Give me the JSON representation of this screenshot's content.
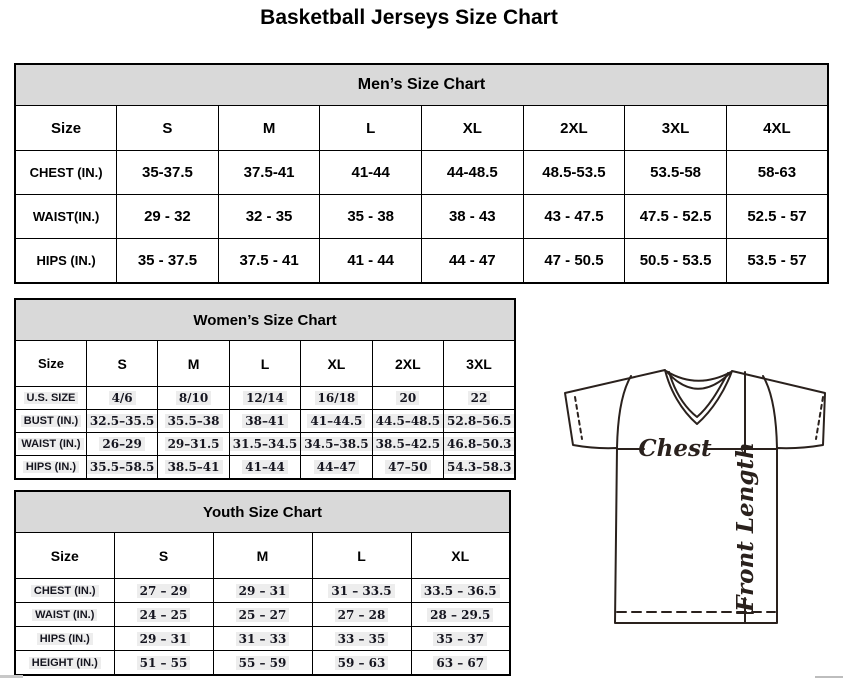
{
  "page": {
    "title": "Basketball Jerseys Size Chart"
  },
  "tables": {
    "men": {
      "title": "Men’s Size Chart",
      "size_label": "Size",
      "columns": [
        "S",
        "M",
        "L",
        "XL",
        "2XL",
        "3XL",
        "4XL"
      ],
      "rows": [
        {
          "label": "CHEST (IN.)",
          "values": [
            "35-37.5",
            "37.5-41",
            "41-44",
            "44-48.5",
            "48.5-53.5",
            "53.5-58",
            "58-63"
          ]
        },
        {
          "label": "WAIST(IN.)",
          "values": [
            "29 - 32",
            "32 - 35",
            "35 - 38",
            "38 - 43",
            "43 - 47.5",
            "47.5 - 52.5",
            "52.5 - 57"
          ]
        },
        {
          "label": "HIPS (IN.)",
          "values": [
            "35 - 37.5",
            "37.5 - 41",
            "41 - 44",
            "44 - 47",
            "47 - 50.5",
            "50.5 - 53.5",
            "53.5 - 57"
          ]
        }
      ]
    },
    "women": {
      "title": "Women’s Size Chart",
      "size_label": "Size",
      "columns": [
        "S",
        "M",
        "L",
        "XL",
        "2XL",
        "3XL"
      ],
      "rows": [
        {
          "label": "U.S. SIZE",
          "values": [
            "4/6",
            "8/10",
            "12/14",
            "16/18",
            "20",
            "22"
          ]
        },
        {
          "label": "BUST (IN.)",
          "values": [
            "32.5–35.5",
            "35.5–38",
            "38–41",
            "41–44.5",
            "44.5–48.5",
            "52.8–56.5"
          ]
        },
        {
          "label": "WAIST (IN.)",
          "values": [
            "26–29",
            "29–31.5",
            "31.5–34.5",
            "34.5–38.5",
            "38.5–42.5",
            "46.8–50.3"
          ]
        },
        {
          "label": "HIPS (IN.)",
          "values": [
            "35.5–58.5",
            "38.5–41",
            "41–44",
            "44–47",
            "47–50",
            "54.3–58.3"
          ]
        }
      ]
    },
    "youth": {
      "title": "Youth Size Chart",
      "size_label": "Size",
      "columns": [
        "S",
        "M",
        "L",
        "XL"
      ],
      "rows": [
        {
          "label": "CHEST (IN.)",
          "values": [
            "27 – 29",
            "29 – 31",
            "31 – 33.5",
            "33.5 – 36.5"
          ]
        },
        {
          "label": "WAIST (IN.)",
          "values": [
            "24 – 25",
            "25 – 27",
            "27 – 28",
            "28 – 29.5"
          ]
        },
        {
          "label": "HIPS (IN.)",
          "values": [
            "29 – 31",
            "31 – 33",
            "33 – 35",
            "35 – 37"
          ]
        },
        {
          "label": "HEIGHT (IN.)",
          "values": [
            "51 – 55",
            "55 – 59",
            "59 – 63",
            "63 – 67"
          ]
        }
      ]
    }
  },
  "diagram": {
    "chest_label": "Chest",
    "front_length_label": "Front Length"
  },
  "colors": {
    "table_header_bg": "#d9d9d9",
    "table_border": "#000000",
    "mens_text": "#000000",
    "women_youth_text": "#15151f",
    "cell_highlight_bg": "#ededed",
    "diagram_stroke": "#2a211d",
    "scrollbar_gray": "#c8c8c8"
  }
}
